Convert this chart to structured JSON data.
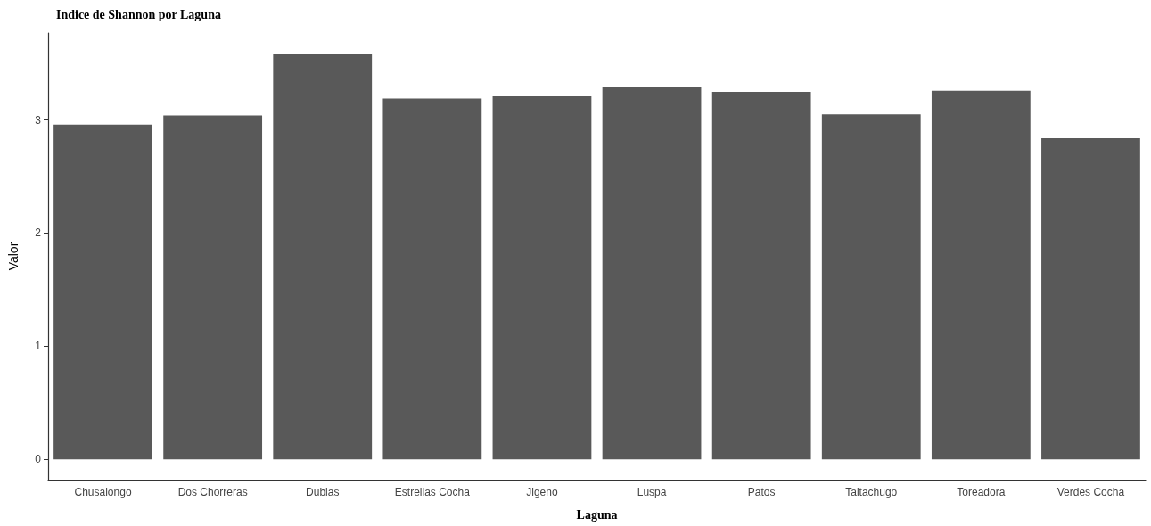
{
  "chart_data": {
    "type": "bar",
    "title": "Indice de Shannon por Laguna",
    "xlabel": "Laguna",
    "ylabel": "Valor",
    "categories": [
      "Chusalongo",
      "Dos Chorreras",
      "Dublas",
      "Estrellas Cocha",
      "Jigeno",
      "Luspa",
      "Patos",
      "Taitachugo",
      "Toreadora",
      "Verdes Cocha"
    ],
    "values": [
      2.96,
      3.04,
      3.58,
      3.19,
      3.21,
      3.29,
      3.25,
      3.05,
      3.26,
      2.84
    ],
    "color": "#595959",
    "ylim": [
      -0.18,
      3.77
    ],
    "yticks": [
      0,
      1,
      2,
      3
    ],
    "grid": false
  }
}
